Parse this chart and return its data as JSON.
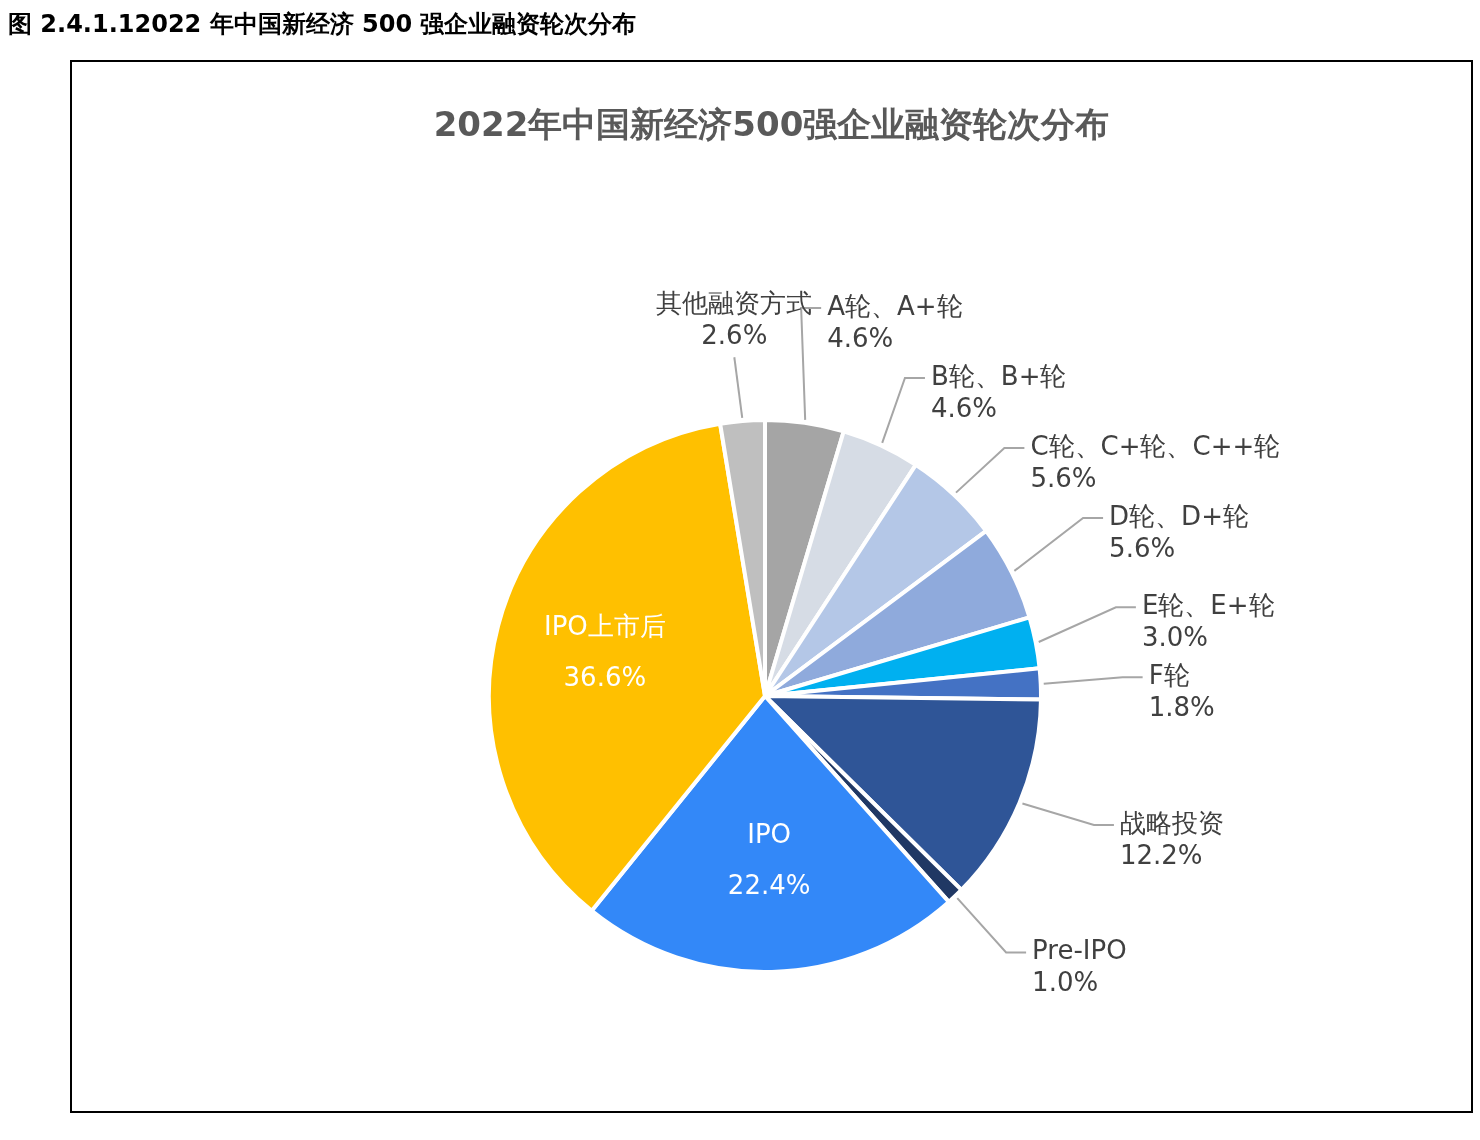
{
  "chart_data": {
    "type": "pie",
    "title": "图 2.4.1.12022 年中国新经济 500 强企业融资轮次分布",
    "subtitle": "2022年中国新经济500强企业融资轮次分布",
    "categories": [
      "A轮、A+轮",
      "B轮、B+轮",
      "C轮、C+轮、C++轮",
      "D轮、D+轮",
      "E轮、E+轮",
      "F轮",
      "战略投资",
      "Pre-IPO",
      "IPO",
      "IPO上市后",
      "其他融资方式"
    ],
    "values": [
      4.6,
      4.6,
      5.6,
      5.6,
      3.0,
      1.8,
      12.2,
      1.0,
      22.4,
      36.6,
      2.6
    ],
    "value_labels": [
      "4.6%",
      "4.6%",
      "5.6%",
      "5.6%",
      "3.0%",
      "1.8%",
      "12.2%",
      "1.0%",
      "22.4%",
      "36.6%",
      "2.6%"
    ],
    "colors": [
      "#a5a5a5",
      "#d6dce5",
      "#b4c7e7",
      "#8faadc",
      "#00b0f0",
      "#4472c4",
      "#2f5597",
      "#203864",
      "#3388f8",
      "#ffc000",
      "#bfbfbf"
    ],
    "legend": false
  }
}
